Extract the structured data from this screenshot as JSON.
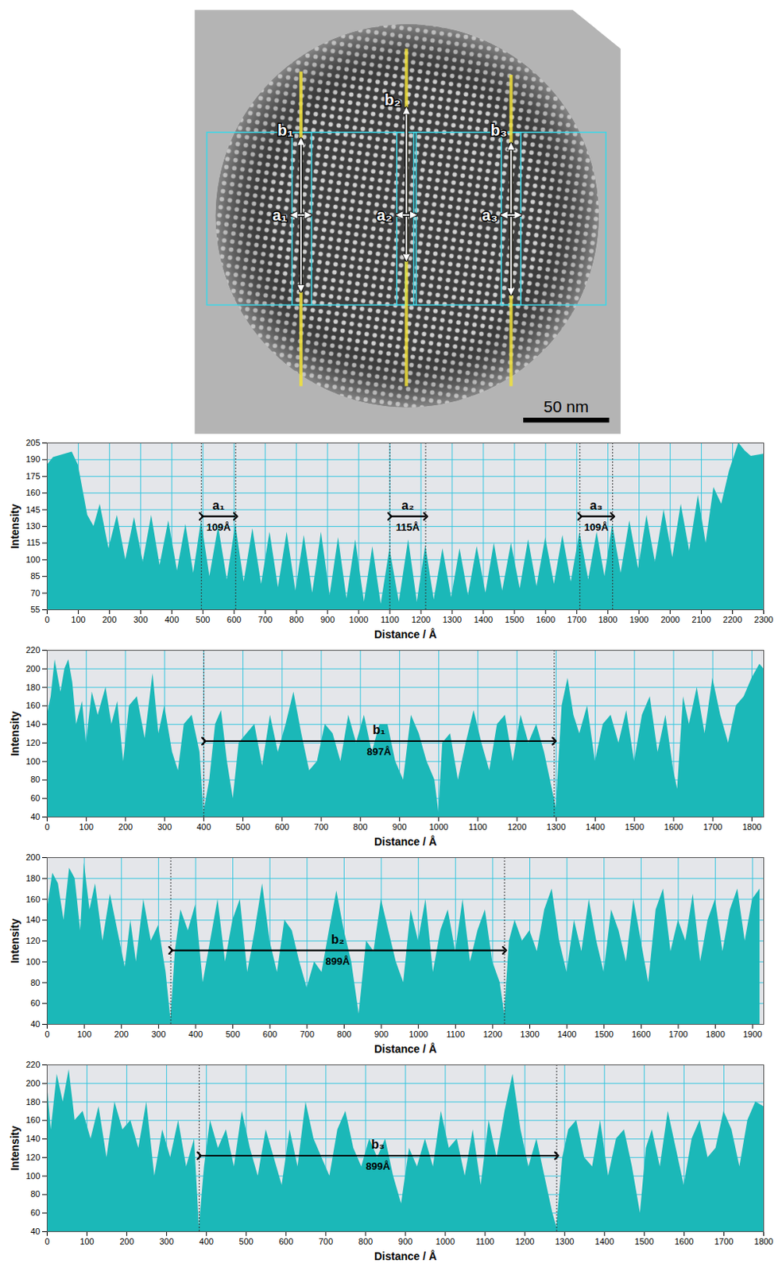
{
  "image": {
    "labels": [
      "a₁",
      "a₂",
      "a₃",
      "b₁",
      "b₂",
      "b₃"
    ],
    "scale_bar": "50 nm"
  },
  "chart_data": [
    {
      "type": "area",
      "x_label": "Distance / Å",
      "y_label": "Intensity",
      "color": "#1bb8b8",
      "grid": true,
      "xlim": [
        0,
        2300
      ],
      "ylim": [
        55,
        205
      ],
      "xticks": [
        0,
        100,
        200,
        300,
        400,
        500,
        600,
        700,
        800,
        900,
        1000,
        1100,
        1200,
        1300,
        1400,
        1500,
        1600,
        1700,
        1800,
        1900,
        2000,
        2100,
        2200,
        2300
      ],
      "yticks": [
        55,
        70,
        85,
        100,
        115,
        130,
        145,
        160,
        175,
        190,
        205
      ],
      "x": [
        0,
        20,
        80,
        100,
        130,
        150,
        170,
        198,
        225,
        252,
        280,
        308,
        335,
        362,
        390,
        418,
        445,
        470,
        495,
        522,
        550,
        578,
        605,
        632,
        660,
        688,
        715,
        742,
        770,
        798,
        825,
        852,
        880,
        908,
        935,
        962,
        990,
        1018,
        1045,
        1072,
        1100,
        1130,
        1160,
        1188,
        1215,
        1242,
        1270,
        1298,
        1325,
        1352,
        1380,
        1408,
        1435,
        1462,
        1490,
        1518,
        1545,
        1572,
        1600,
        1628,
        1655,
        1682,
        1710,
        1738,
        1765,
        1790,
        1815,
        1842,
        1870,
        1898,
        1925,
        1952,
        1980,
        2008,
        2035,
        2062,
        2090,
        2115,
        2140,
        2165,
        2190,
        2220,
        2240,
        2260,
        2300
      ],
      "values": [
        185,
        192,
        197,
        185,
        140,
        130,
        150,
        110,
        140,
        100,
        138,
        98,
        140,
        95,
        135,
        90,
        132,
        88,
        135,
        85,
        130,
        82,
        132,
        80,
        128,
        78,
        125,
        75,
        125,
        72,
        122,
        70,
        125,
        68,
        120,
        65,
        118,
        62,
        112,
        60,
        110,
        62,
        118,
        62,
        113,
        64,
        110,
        66,
        110,
        68,
        112,
        70,
        115,
        72,
        115,
        74,
        118,
        76,
        120,
        78,
        122,
        80,
        125,
        82,
        125,
        85,
        132,
        88,
        135,
        92,
        140,
        98,
        145,
        102,
        150,
        108,
        158,
        115,
        165,
        150,
        180,
        205,
        198,
        193,
        195
      ],
      "annotations": [
        {
          "label": "a₁",
          "text": "109Å",
          "x": [
            495,
            605
          ],
          "y": 139
        },
        {
          "label": "a₂",
          "text": "115Å",
          "x": [
            1100,
            1215
          ],
          "y": 139
        },
        {
          "label": "a₃",
          "text": "109Å",
          "x": [
            1710,
            1815
          ],
          "y": 139
        }
      ]
    },
    {
      "type": "area",
      "x_label": "Distance / Å",
      "y_label": "Intensity",
      "color": "#1bb8b8",
      "grid": true,
      "xlim": [
        0,
        1830
      ],
      "ylim": [
        40,
        220
      ],
      "xticks": [
        0,
        100,
        200,
        300,
        400,
        500,
        600,
        700,
        800,
        900,
        1000,
        1100,
        1200,
        1300,
        1400,
        1500,
        1600,
        1700,
        1800
      ],
      "yticks": [
        40,
        60,
        80,
        100,
        120,
        140,
        160,
        180,
        200,
        220
      ],
      "x": [
        0,
        10,
        20,
        35,
        45,
        55,
        65,
        75,
        90,
        100,
        115,
        130,
        150,
        165,
        180,
        195,
        210,
        230,
        250,
        270,
        285,
        300,
        320,
        335,
        350,
        370,
        390,
        400,
        415,
        430,
        445,
        460,
        475,
        490,
        510,
        530,
        550,
        570,
        590,
        610,
        630,
        650,
        670,
        690,
        710,
        730,
        750,
        770,
        790,
        810,
        830,
        850,
        870,
        890,
        910,
        930,
        950,
        970,
        990,
        1000,
        1010,
        1030,
        1050,
        1070,
        1090,
        1110,
        1130,
        1150,
        1170,
        1190,
        1210,
        1230,
        1250,
        1270,
        1290,
        1300,
        1315,
        1330,
        1345,
        1360,
        1380,
        1400,
        1420,
        1440,
        1460,
        1480,
        1500,
        1520,
        1540,
        1560,
        1580,
        1600,
        1610,
        1625,
        1640,
        1660,
        1680,
        1700,
        1720,
        1740,
        1760,
        1780,
        1800,
        1820,
        1830
      ],
      "values": [
        150,
        170,
        210,
        175,
        200,
        210,
        185,
        140,
        165,
        120,
        175,
        150,
        180,
        140,
        165,
        100,
        160,
        170,
        125,
        195,
        130,
        160,
        110,
        90,
        140,
        150,
        110,
        45,
        80,
        140,
        155,
        100,
        60,
        120,
        130,
        140,
        95,
        150,
        110,
        140,
        175,
        130,
        90,
        100,
        140,
        130,
        100,
        150,
        120,
        150,
        110,
        140,
        140,
        100,
        80,
        150,
        130,
        100,
        80,
        45,
        120,
        130,
        80,
        120,
        155,
        120,
        90,
        140,
        150,
        100,
        150,
        120,
        140,
        110,
        70,
        50,
        160,
        190,
        150,
        130,
        160,
        100,
        140,
        150,
        120,
        155,
        100,
        150,
        170,
        110,
        150,
        90,
        70,
        170,
        140,
        180,
        130,
        190,
        150,
        120,
        160,
        170,
        190,
        205,
        200
      ],
      "annotations": [
        {
          "label": "b₁",
          "text": "897Å",
          "x": [
            400,
            1295
          ],
          "y": 122
        }
      ]
    },
    {
      "type": "area",
      "x_label": "Distance / Å",
      "y_label": "Intensity",
      "color": "#1bb8b8",
      "grid": true,
      "xlim": [
        0,
        1930
      ],
      "ylim": [
        40,
        200
      ],
      "xticks": [
        0,
        100,
        200,
        300,
        400,
        500,
        600,
        700,
        800,
        900,
        1000,
        1100,
        1200,
        1300,
        1400,
        1500,
        1600,
        1700,
        1800,
        1900
      ],
      "yticks": [
        40,
        60,
        80,
        100,
        120,
        140,
        160,
        180,
        200
      ],
      "x": [
        0,
        15,
        30,
        45,
        60,
        75,
        90,
        100,
        115,
        130,
        150,
        170,
        190,
        210,
        225,
        240,
        260,
        280,
        300,
        320,
        333,
        345,
        360,
        380,
        400,
        420,
        440,
        460,
        480,
        500,
        520,
        540,
        560,
        580,
        600,
        620,
        640,
        660,
        680,
        700,
        720,
        740,
        760,
        780,
        800,
        820,
        840,
        860,
        880,
        900,
        920,
        940,
        960,
        980,
        1000,
        1020,
        1040,
        1060,
        1080,
        1100,
        1120,
        1140,
        1160,
        1180,
        1200,
        1220,
        1232,
        1245,
        1260,
        1280,
        1300,
        1320,
        1340,
        1360,
        1380,
        1400,
        1420,
        1440,
        1460,
        1480,
        1500,
        1520,
        1540,
        1560,
        1580,
        1600,
        1620,
        1640,
        1660,
        1680,
        1700,
        1720,
        1740,
        1760,
        1780,
        1800,
        1820,
        1840,
        1860,
        1880,
        1900,
        1920
      ],
      "values": [
        150,
        185,
        175,
        140,
        190,
        180,
        130,
        195,
        150,
        175,
        120,
        165,
        130,
        95,
        140,
        100,
        160,
        120,
        135,
        90,
        45,
        110,
        150,
        130,
        155,
        80,
        120,
        160,
        100,
        140,
        160,
        90,
        130,
        175,
        120,
        90,
        140,
        130,
        100,
        75,
        100,
        90,
        130,
        168,
        130,
        100,
        50,
        120,
        110,
        160,
        130,
        100,
        80,
        150,
        120,
        160,
        90,
        130,
        150,
        110,
        160,
        100,
        130,
        150,
        100,
        80,
        50,
        120,
        140,
        120,
        130,
        110,
        150,
        170,
        120,
        90,
        140,
        110,
        160,
        120,
        90,
        150,
        130,
        100,
        160,
        120,
        80,
        150,
        170,
        110,
        140,
        120,
        165,
        100,
        140,
        160,
        110,
        150,
        170,
        120,
        160,
        170
      ],
      "annotations": [
        {
          "label": "b₂",
          "text": "899Å",
          "x": [
            333,
            1232
          ],
          "y": 111
        }
      ]
    },
    {
      "type": "area",
      "x_label": "Distance / Å",
      "y_label": "Intensity",
      "color": "#1bb8b8",
      "grid": true,
      "xlim": [
        0,
        1800
      ],
      "ylim": [
        40,
        220
      ],
      "xticks": [
        0,
        100,
        200,
        300,
        400,
        500,
        600,
        700,
        800,
        900,
        1000,
        1100,
        1200,
        1300,
        1400,
        1500,
        1600,
        1700,
        1800
      ],
      "yticks": [
        40,
        60,
        80,
        100,
        120,
        140,
        160,
        180,
        200,
        220
      ],
      "x": [
        0,
        10,
        25,
        40,
        55,
        70,
        90,
        110,
        130,
        150,
        170,
        190,
        210,
        230,
        250,
        270,
        290,
        310,
        330,
        350,
        370,
        382,
        395,
        410,
        430,
        450,
        470,
        490,
        510,
        530,
        550,
        570,
        590,
        610,
        630,
        650,
        670,
        690,
        710,
        730,
        750,
        770,
        790,
        810,
        830,
        850,
        870,
        890,
        910,
        930,
        950,
        970,
        990,
        1010,
        1030,
        1050,
        1070,
        1090,
        1110,
        1130,
        1150,
        1170,
        1190,
        1210,
        1230,
        1250,
        1270,
        1280,
        1295,
        1310,
        1330,
        1350,
        1370,
        1390,
        1410,
        1430,
        1450,
        1470,
        1490,
        1505,
        1520,
        1540,
        1560,
        1580,
        1600,
        1620,
        1640,
        1660,
        1680,
        1700,
        1720,
        1740,
        1760,
        1780,
        1800
      ],
      "values": [
        200,
        150,
        210,
        180,
        215,
        160,
        170,
        140,
        175,
        120,
        180,
        150,
        160,
        130,
        180,
        100,
        150,
        120,
        160,
        110,
        140,
        45,
        110,
        160,
        130,
        150,
        110,
        170,
        130,
        100,
        150,
        120,
        90,
        150,
        110,
        180,
        140,
        120,
        100,
        150,
        170,
        130,
        110,
        140,
        120,
        140,
        100,
        70,
        130,
        110,
        140,
        110,
        170,
        130,
        140,
        100,
        150,
        90,
        160,
        120,
        170,
        210,
        150,
        110,
        140,
        100,
        60,
        45,
        120,
        150,
        160,
        120,
        110,
        160,
        100,
        140,
        150,
        110,
        60,
        130,
        150,
        110,
        170,
        130,
        90,
        140,
        160,
        120,
        130,
        170,
        150,
        110,
        160,
        180,
        175
      ],
      "annotations": [
        {
          "label": "b₃",
          "text": "899Å",
          "x": [
            382,
            1280
          ],
          "y": 122
        }
      ]
    }
  ]
}
